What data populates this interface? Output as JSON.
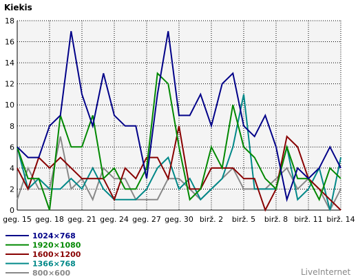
{
  "chart_data": {
    "type": "line",
    "ylabel": "Kiekis",
    "ylim": [
      0,
      18
    ],
    "yticks": [
      0,
      2,
      4,
      6,
      8,
      10,
      12,
      14,
      16,
      18
    ],
    "x_tick_labels": [
      "geg. 15",
      "geg. 18",
      "geg. 21",
      "geg. 24",
      "geg. 27",
      "geg. 30",
      "birž. 2",
      "birž. 5",
      "birž. 8",
      "birž. 11",
      "birž. 14"
    ],
    "x_count": 31,
    "grid": true,
    "legend_position": "bottom-left",
    "series": [
      {
        "name": "1024×768",
        "color": "#000088",
        "values": [
          6,
          5,
          5,
          8,
          9,
          17,
          11,
          8,
          13,
          9,
          8,
          8,
          3,
          11,
          17,
          9,
          9,
          11,
          8,
          12,
          13,
          8,
          7,
          9,
          6,
          1,
          4,
          3,
          4,
          6,
          4
        ]
      },
      {
        "name": "1920×1080",
        "color": "#008800",
        "values": [
          6,
          3,
          3,
          0,
          9,
          6,
          6,
          9,
          3,
          4,
          2,
          2,
          4,
          13,
          12,
          6,
          1,
          2,
          6,
          4,
          10,
          6,
          5,
          3,
          2,
          6,
          3,
          3,
          1,
          4,
          3
        ]
      },
      {
        "name": "1600×1200",
        "color": "#880000",
        "values": [
          4,
          2,
          5,
          4,
          5,
          4,
          3,
          3,
          3,
          1,
          4,
          3,
          5,
          5,
          3,
          8,
          2,
          2,
          4,
          4,
          4,
          3,
          3,
          0,
          2,
          7,
          6,
          3,
          2,
          1,
          0
        ]
      },
      {
        "name": "1366×768",
        "color": "#008888",
        "values": [
          6,
          2,
          3,
          2,
          2,
          3,
          2,
          4,
          2,
          1,
          1,
          1,
          2,
          4,
          5,
          2,
          3,
          1,
          2,
          3,
          6,
          11,
          2,
          2,
          2,
          6,
          1,
          2,
          4,
          0,
          5
        ]
      },
      {
        "name": "800×600",
        "color": "#888888",
        "values": [
          1,
          4,
          2,
          2,
          7,
          2,
          3,
          1,
          4,
          3,
          3,
          1,
          1,
          1,
          3,
          3,
          2,
          1,
          2,
          3,
          4,
          2,
          2,
          2,
          3,
          4,
          2,
          3,
          2,
          0,
          2
        ]
      }
    ]
  },
  "watermark": "LiveInternet"
}
